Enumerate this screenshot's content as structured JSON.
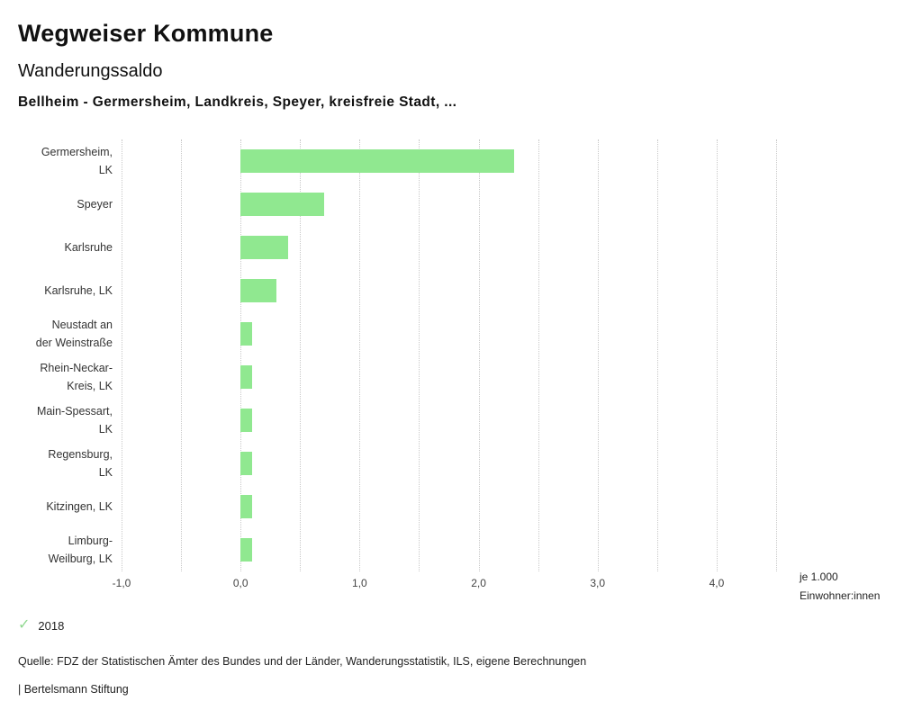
{
  "header": {
    "title": "Wegweiser Kommune",
    "subtitle": "Wanderungssaldo",
    "selection": "Bellheim - Germersheim, Landkreis, Speyer, kreisfreie Stadt, ..."
  },
  "chart_data": {
    "type": "bar",
    "orientation": "horizontal",
    "title": "Wanderungssaldo",
    "subtitle": "Bellheim - Germersheim, Landkreis, Speyer, kreisfreie Stadt, ...",
    "categories": [
      "Germersheim, LK",
      "Speyer",
      "Karlsruhe",
      "Karlsruhe, LK",
      "Neustadt an der Weinstraße",
      "Rhein-Neckar-Kreis, LK",
      "Main-Spessart, LK",
      "Regensburg, LK",
      "Kitzingen, LK",
      "Limburg-Weilburg, LK"
    ],
    "series": [
      {
        "name": "2018",
        "values": [
          2.3,
          0.7,
          0.4,
          0.3,
          0.1,
          0.1,
          0.1,
          0.1,
          0.1,
          0.1
        ]
      }
    ],
    "bar_color": "#90e890",
    "xlim": [
      -1.0,
      4.5
    ],
    "x_ticks": [
      -1.0,
      0.0,
      1.0,
      2.0,
      3.0,
      4.0
    ],
    "x_tick_labels": [
      "-1,0",
      "0,0",
      "1,0",
      "2,0",
      "3,0",
      "4,0"
    ],
    "grid": true,
    "grid_step": 0.5,
    "unit_label": "je 1.000 Einwohner:innen",
    "legend_position": "bottom-left"
  },
  "legend": {
    "check_icon": "✓",
    "check_color": "#90d890",
    "year": "2018"
  },
  "footer": {
    "source": "Quelle: FDZ der Statistischen Ämter des Bundes und der Länder, Wanderungsstatistik, ILS, eigene Berechnungen",
    "attribution": "| Bertelsmann Stiftung"
  }
}
